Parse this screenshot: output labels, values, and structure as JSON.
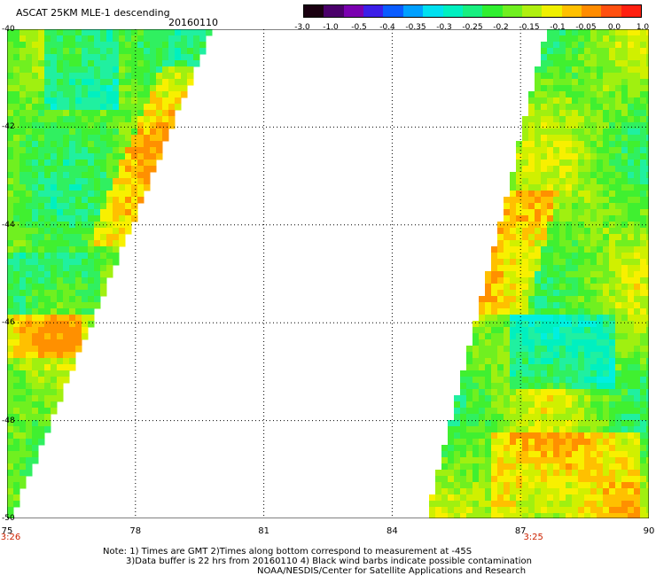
{
  "header": {
    "title": "ASCAT 25KM MLE-1 descending",
    "date": "20160110"
  },
  "colorbar": {
    "colors": [
      "#1a0010",
      "#4a006a",
      "#7a00b0",
      "#3c1fe8",
      "#0a5cff",
      "#00a0ff",
      "#00e0f0",
      "#00f0c0",
      "#18f080",
      "#30f030",
      "#70f020",
      "#b0f010",
      "#f0f000",
      "#ffc000",
      "#ff8c00",
      "#ff5010",
      "#ff2010"
    ],
    "labels": [
      "-3.0",
      "-1.0",
      "-0.5",
      "-0.4",
      "-0.35",
      "-0.3",
      "-0.25",
      "-0.2",
      "-0.15",
      "-0.1",
      "-0.05",
      "0.0",
      "1.0"
    ]
  },
  "axes": {
    "x_labels": [
      "75",
      "78",
      "81",
      "84",
      "87",
      "90"
    ],
    "y_labels": [
      "-40",
      "-42",
      "-44",
      "-46",
      "-48",
      "-50"
    ],
    "x_range": [
      75,
      90
    ],
    "y_range": [
      -40,
      -50
    ]
  },
  "times": [
    {
      "label": "3:26",
      "lon": 75
    },
    {
      "label": "3:25",
      "lon": 87.3
    }
  ],
  "notes": [
    "Note: 1) Times are GMT 2)Times along bottom correspond to measurement at -45S",
    "3)Data buffer is 22 hrs from 20160110 4) Black wind barbs indicate possible contamination",
    "NOAA/NESDIS/Center for Satellite Applications and Research"
  ]
}
